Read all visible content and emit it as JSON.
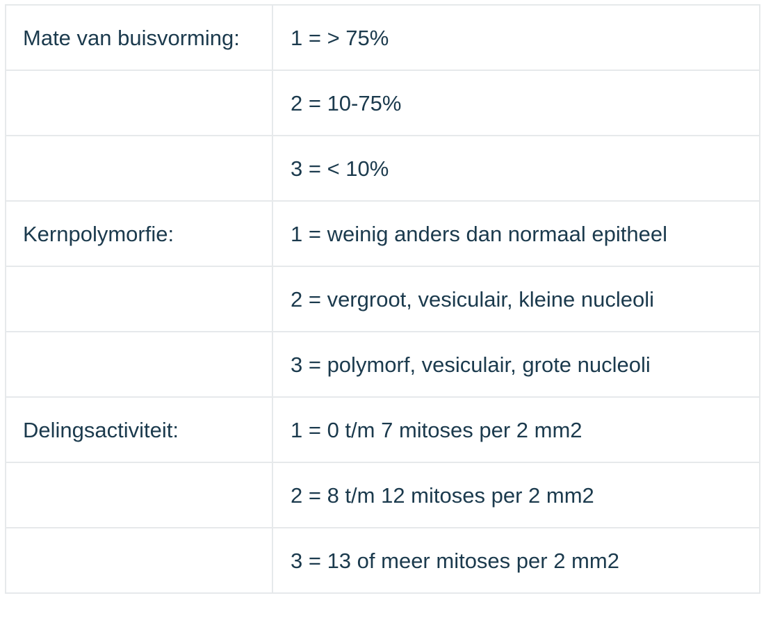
{
  "table": {
    "rows": [
      {
        "criterion": "Mate van buisvorming:",
        "score": "1 = > 75%"
      },
      {
        "criterion": "",
        "score": "2 = 10-75%"
      },
      {
        "criterion": "",
        "score": "3 = < 10%"
      },
      {
        "criterion": "Kernpolymorfie:",
        "score": "1 = weinig anders dan normaal epitheel"
      },
      {
        "criterion": "",
        "score": "2 = vergroot, vesiculair, kleine nucleoli"
      },
      {
        "criterion": "",
        "score": "3 = polymorf, vesiculair, grote nucleoli"
      },
      {
        "criterion": "Delingsactiviteit:",
        "score": "1 = 0 t/m 7 mitoses per 2 mm2"
      },
      {
        "criterion": "",
        "score": "2 = 8 t/m 12 mitoses per 2 mm2"
      },
      {
        "criterion": "",
        "score": "3 = 13 of meer mitoses per 2 mm2"
      }
    ]
  }
}
